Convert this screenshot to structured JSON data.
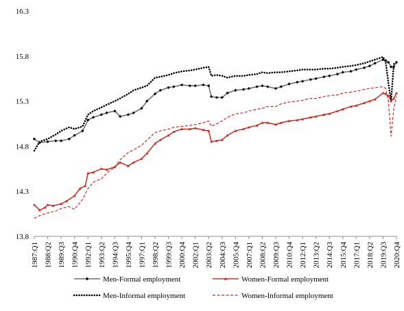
{
  "chart_data": {
    "type": "line",
    "title": "",
    "xlabel": "",
    "ylabel": "",
    "ylim": [
      13.8,
      16.3
    ],
    "yticks": [
      "13.8",
      "14.3",
      "14.8",
      "15.3",
      "15.8",
      "16.3"
    ],
    "grid": false,
    "legend_position": "bottom",
    "x_start": "1987:Q1",
    "x_end": "2020:Q4",
    "xtick_labels": [
      "1987:Q1",
      "1988:Q2",
      "1989:Q3",
      "1990:Q4",
      "1992:Q1",
      "1993:Q2",
      "1994:Q3",
      "1995:Q4",
      "1997:Q1",
      "1998:Q2",
      "1999:Q3",
      "2000:Q4",
      "2002:Q1",
      "2003:Q2",
      "2004:Q3",
      "2005:Q4",
      "2007:Q1",
      "2008:Q2",
      "2009:Q3",
      "2010:Q4",
      "2012:Q1",
      "2013:Q2",
      "2014:Q3",
      "2015:Q4",
      "2017:Q1",
      "2018:Q2",
      "2019:Q3",
      "2020:Q4"
    ],
    "series": [
      {
        "name": "Men-Formal employment",
        "color": "#6e6e6e",
        "style": "solid-diamond",
        "points": [
          [
            "1987:Q1",
            14.88
          ],
          [
            "1987:Q3",
            14.84
          ],
          [
            "1988:Q2",
            14.85
          ],
          [
            "1989:Q1",
            14.86
          ],
          [
            "1989:Q3",
            14.86
          ],
          [
            "1990:Q2",
            14.88
          ],
          [
            "1990:Q4",
            14.92
          ],
          [
            "1991:Q3",
            14.97
          ],
          [
            "1992:Q1",
            15.09
          ],
          [
            "1992:Q3",
            15.12
          ],
          [
            "1993:Q2",
            15.15
          ],
          [
            "1993:Q4",
            15.17
          ],
          [
            "1994:Q3",
            15.19
          ],
          [
            "1995:Q1",
            15.13
          ],
          [
            "1995:Q4",
            15.15
          ],
          [
            "1996:Q2",
            15.17
          ],
          [
            "1997:Q1",
            15.22
          ],
          [
            "1997:Q3",
            15.3
          ],
          [
            "1998:Q2",
            15.38
          ],
          [
            "1998:Q4",
            15.42
          ],
          [
            "1999:Q3",
            15.45
          ],
          [
            "2000:Q1",
            15.46
          ],
          [
            "2000:Q4",
            15.48
          ],
          [
            "2001:Q3",
            15.47
          ],
          [
            "2002:Q1",
            15.47
          ],
          [
            "2002:Q4",
            15.48
          ],
          [
            "2003:Q2",
            15.47
          ],
          [
            "2003:Q3",
            15.35
          ],
          [
            "2004:Q1",
            15.34
          ],
          [
            "2004:Q3",
            15.34
          ],
          [
            "2005:Q1",
            15.39
          ],
          [
            "2005:Q4",
            15.42
          ],
          [
            "2006:Q3",
            15.43
          ],
          [
            "2007:Q1",
            15.44
          ],
          [
            "2007:Q4",
            15.46
          ],
          [
            "2008:Q2",
            15.47
          ],
          [
            "2008:Q4",
            15.46
          ],
          [
            "2009:Q3",
            15.44
          ],
          [
            "2010:Q1",
            15.46
          ],
          [
            "2010:Q4",
            15.49
          ],
          [
            "2011:Q3",
            15.51
          ],
          [
            "2012:Q1",
            15.52
          ],
          [
            "2012:Q4",
            15.54
          ],
          [
            "2013:Q2",
            15.55
          ],
          [
            "2014:Q1",
            15.57
          ],
          [
            "2014:Q3",
            15.58
          ],
          [
            "2015:Q2",
            15.6
          ],
          [
            "2015:Q4",
            15.62
          ],
          [
            "2016:Q3",
            15.63
          ],
          [
            "2017:Q1",
            15.65
          ],
          [
            "2017:Q4",
            15.67
          ],
          [
            "2018:Q2",
            15.69
          ],
          [
            "2018:Q4",
            15.72
          ],
          [
            "2019:Q3",
            15.76
          ],
          [
            "2019:Q4",
            15.75
          ],
          [
            "2020:Q1",
            15.73
          ],
          [
            "2020:Q2",
            15.68
          ],
          [
            "2020:Q3",
            15.68
          ],
          [
            "2020:Q4",
            15.73
          ]
        ]
      },
      {
        "name": "Women-Formal employment",
        "color": "#c0392b",
        "style": "solid-triangle",
        "points": [
          [
            "1987:Q1",
            14.15
          ],
          [
            "1987:Q3",
            14.09
          ],
          [
            "1988:Q1",
            14.12
          ],
          [
            "1988:Q2",
            14.15
          ],
          [
            "1988:Q4",
            14.14
          ],
          [
            "1989:Q3",
            14.16
          ],
          [
            "1990:Q1",
            14.19
          ],
          [
            "1990:Q4",
            14.25
          ],
          [
            "1991:Q2",
            14.33
          ],
          [
            "1991:Q4",
            14.36
          ],
          [
            "1992:Q1",
            14.5
          ],
          [
            "1992:Q3",
            14.51
          ],
          [
            "1993:Q2",
            14.55
          ],
          [
            "1993:Q4",
            14.54
          ],
          [
            "1994:Q3",
            14.57
          ],
          [
            "1995:Q1",
            14.62
          ],
          [
            "1995:Q4",
            14.58
          ],
          [
            "1996:Q2",
            14.62
          ],
          [
            "1997:Q1",
            14.66
          ],
          [
            "1997:Q3",
            14.72
          ],
          [
            "1998:Q2",
            14.83
          ],
          [
            "1998:Q4",
            14.87
          ],
          [
            "1999:Q3",
            14.92
          ],
          [
            "2000:Q1",
            14.96
          ],
          [
            "2000:Q4",
            14.99
          ],
          [
            "2001:Q3",
            14.99
          ],
          [
            "2002:Q1",
            15.0
          ],
          [
            "2002:Q4",
            14.98
          ],
          [
            "2003:Q2",
            14.97
          ],
          [
            "2003:Q3",
            14.85
          ],
          [
            "2004:Q1",
            14.86
          ],
          [
            "2004:Q3",
            14.87
          ],
          [
            "2005:Q1",
            14.92
          ],
          [
            "2005:Q4",
            14.97
          ],
          [
            "2006:Q3",
            14.99
          ],
          [
            "2007:Q1",
            15.01
          ],
          [
            "2007:Q4",
            15.03
          ],
          [
            "2008:Q2",
            15.06
          ],
          [
            "2008:Q4",
            15.06
          ],
          [
            "2009:Q3",
            15.04
          ],
          [
            "2010:Q1",
            15.06
          ],
          [
            "2010:Q4",
            15.08
          ],
          [
            "2011:Q3",
            15.09
          ],
          [
            "2012:Q1",
            15.1
          ],
          [
            "2012:Q4",
            15.12
          ],
          [
            "2013:Q2",
            15.13
          ],
          [
            "2014:Q1",
            15.15
          ],
          [
            "2014:Q3",
            15.16
          ],
          [
            "2015:Q2",
            15.19
          ],
          [
            "2015:Q4",
            15.21
          ],
          [
            "2016:Q3",
            15.24
          ],
          [
            "2017:Q1",
            15.25
          ],
          [
            "2017:Q4",
            15.28
          ],
          [
            "2018:Q2",
            15.3
          ],
          [
            "2018:Q4",
            15.32
          ],
          [
            "2019:Q3",
            15.39
          ],
          [
            "2019:Q4",
            15.38
          ],
          [
            "2020:Q1",
            15.36
          ],
          [
            "2020:Q2",
            15.3
          ],
          [
            "2020:Q3",
            15.33
          ],
          [
            "2020:Q4",
            15.39
          ]
        ]
      },
      {
        "name": "Men-Informal employment",
        "color": "#000000",
        "style": "dotted",
        "points": [
          [
            "1987:Q1",
            14.75
          ],
          [
            "1987:Q3",
            14.85
          ],
          [
            "1988:Q2",
            14.88
          ],
          [
            "1989:Q1",
            14.93
          ],
          [
            "1989:Q3",
            14.97
          ],
          [
            "1990:Q2",
            15.01
          ],
          [
            "1990:Q4",
            14.99
          ],
          [
            "1991:Q3",
            15.02
          ],
          [
            "1992:Q1",
            15.15
          ],
          [
            "1992:Q3",
            15.19
          ],
          [
            "1993:Q2",
            15.23
          ],
          [
            "1993:Q4",
            15.26
          ],
          [
            "1994:Q3",
            15.3
          ],
          [
            "1995:Q1",
            15.33
          ],
          [
            "1995:Q4",
            15.38
          ],
          [
            "1996:Q2",
            15.42
          ],
          [
            "1997:Q1",
            15.45
          ],
          [
            "1997:Q3",
            15.47
          ],
          [
            "1998:Q2",
            15.56
          ],
          [
            "1998:Q4",
            15.57
          ],
          [
            "1999:Q3",
            15.59
          ],
          [
            "2000:Q1",
            15.61
          ],
          [
            "2000:Q4",
            15.63
          ],
          [
            "2001:Q3",
            15.64
          ],
          [
            "2002:Q1",
            15.65
          ],
          [
            "2002:Q4",
            15.67
          ],
          [
            "2003:Q2",
            15.68
          ],
          [
            "2003:Q3",
            15.58
          ],
          [
            "2004:Q1",
            15.59
          ],
          [
            "2004:Q3",
            15.58
          ],
          [
            "2005:Q1",
            15.56
          ],
          [
            "2005:Q4",
            15.58
          ],
          [
            "2006:Q3",
            15.58
          ],
          [
            "2007:Q1",
            15.59
          ],
          [
            "2007:Q4",
            15.6
          ],
          [
            "2008:Q2",
            15.62
          ],
          [
            "2008:Q4",
            15.61
          ],
          [
            "2009:Q3",
            15.62
          ],
          [
            "2010:Q1",
            15.62
          ],
          [
            "2010:Q4",
            15.63
          ],
          [
            "2011:Q3",
            15.64
          ],
          [
            "2012:Q1",
            15.65
          ],
          [
            "2012:Q4",
            15.65
          ],
          [
            "2013:Q2",
            15.65
          ],
          [
            "2014:Q1",
            15.66
          ],
          [
            "2014:Q3",
            15.66
          ],
          [
            "2015:Q2",
            15.67
          ],
          [
            "2015:Q4",
            15.68
          ],
          [
            "2016:Q3",
            15.69
          ],
          [
            "2017:Q1",
            15.7
          ],
          [
            "2017:Q4",
            15.72
          ],
          [
            "2018:Q2",
            15.74
          ],
          [
            "2018:Q4",
            15.76
          ],
          [
            "2019:Q3",
            15.79
          ],
          [
            "2019:Q4",
            15.73
          ],
          [
            "2020:Q1",
            15.5
          ],
          [
            "2020:Q2",
            15.3
          ],
          [
            "2020:Q3",
            15.71
          ],
          [
            "2020:Q4",
            15.73
          ]
        ]
      },
      {
        "name": "Women-Informal employment",
        "color": "#e02020",
        "style": "dashed",
        "points": [
          [
            "1987:Q1",
            14.0
          ],
          [
            "1987:Q3",
            14.03
          ],
          [
            "1988:Q2",
            14.06
          ],
          [
            "1989:Q1",
            14.08
          ],
          [
            "1989:Q3",
            14.11
          ],
          [
            "1990:Q2",
            14.13
          ],
          [
            "1990:Q4",
            14.1
          ],
          [
            "1991:Q3",
            14.21
          ],
          [
            "1992:Q1",
            14.33
          ],
          [
            "1992:Q3",
            14.4
          ],
          [
            "1993:Q2",
            14.44
          ],
          [
            "1993:Q4",
            14.5
          ],
          [
            "1994:Q3",
            14.57
          ],
          [
            "1995:Q1",
            14.65
          ],
          [
            "1995:Q4",
            14.73
          ],
          [
            "1996:Q2",
            14.76
          ],
          [
            "1997:Q1",
            14.81
          ],
          [
            "1997:Q3",
            14.87
          ],
          [
            "1998:Q2",
            14.95
          ],
          [
            "1998:Q4",
            14.97
          ],
          [
            "1999:Q3",
            14.99
          ],
          [
            "2000:Q1",
            15.01
          ],
          [
            "2000:Q4",
            15.02
          ],
          [
            "2001:Q3",
            15.03
          ],
          [
            "2002:Q1",
            15.04
          ],
          [
            "2002:Q4",
            15.06
          ],
          [
            "2003:Q2",
            15.08
          ],
          [
            "2003:Q3",
            15.02
          ],
          [
            "2004:Q1",
            15.05
          ],
          [
            "2004:Q3",
            15.08
          ],
          [
            "2005:Q1",
            15.12
          ],
          [
            "2005:Q4",
            15.16
          ],
          [
            "2006:Q3",
            15.17
          ],
          [
            "2007:Q1",
            15.19
          ],
          [
            "2007:Q4",
            15.21
          ],
          [
            "2008:Q2",
            15.22
          ],
          [
            "2008:Q4",
            15.24
          ],
          [
            "2009:Q3",
            15.24
          ],
          [
            "2010:Q1",
            15.27
          ],
          [
            "2010:Q4",
            15.29
          ],
          [
            "2011:Q3",
            15.3
          ],
          [
            "2012:Q1",
            15.31
          ],
          [
            "2012:Q4",
            15.33
          ],
          [
            "2013:Q2",
            15.33
          ],
          [
            "2014:Q1",
            15.35
          ],
          [
            "2014:Q3",
            15.36
          ],
          [
            "2015:Q2",
            15.37
          ],
          [
            "2015:Q4",
            15.39
          ],
          [
            "2016:Q3",
            15.4
          ],
          [
            "2017:Q1",
            15.41
          ],
          [
            "2017:Q4",
            15.43
          ],
          [
            "2018:Q2",
            15.44
          ],
          [
            "2018:Q4",
            15.45
          ],
          [
            "2019:Q3",
            15.46
          ],
          [
            "2019:Q4",
            15.44
          ],
          [
            "2020:Q1",
            15.3
          ],
          [
            "2020:Q2",
            14.91
          ],
          [
            "2020:Q3",
            15.22
          ],
          [
            "2020:Q4",
            15.35
          ]
        ]
      }
    ]
  }
}
